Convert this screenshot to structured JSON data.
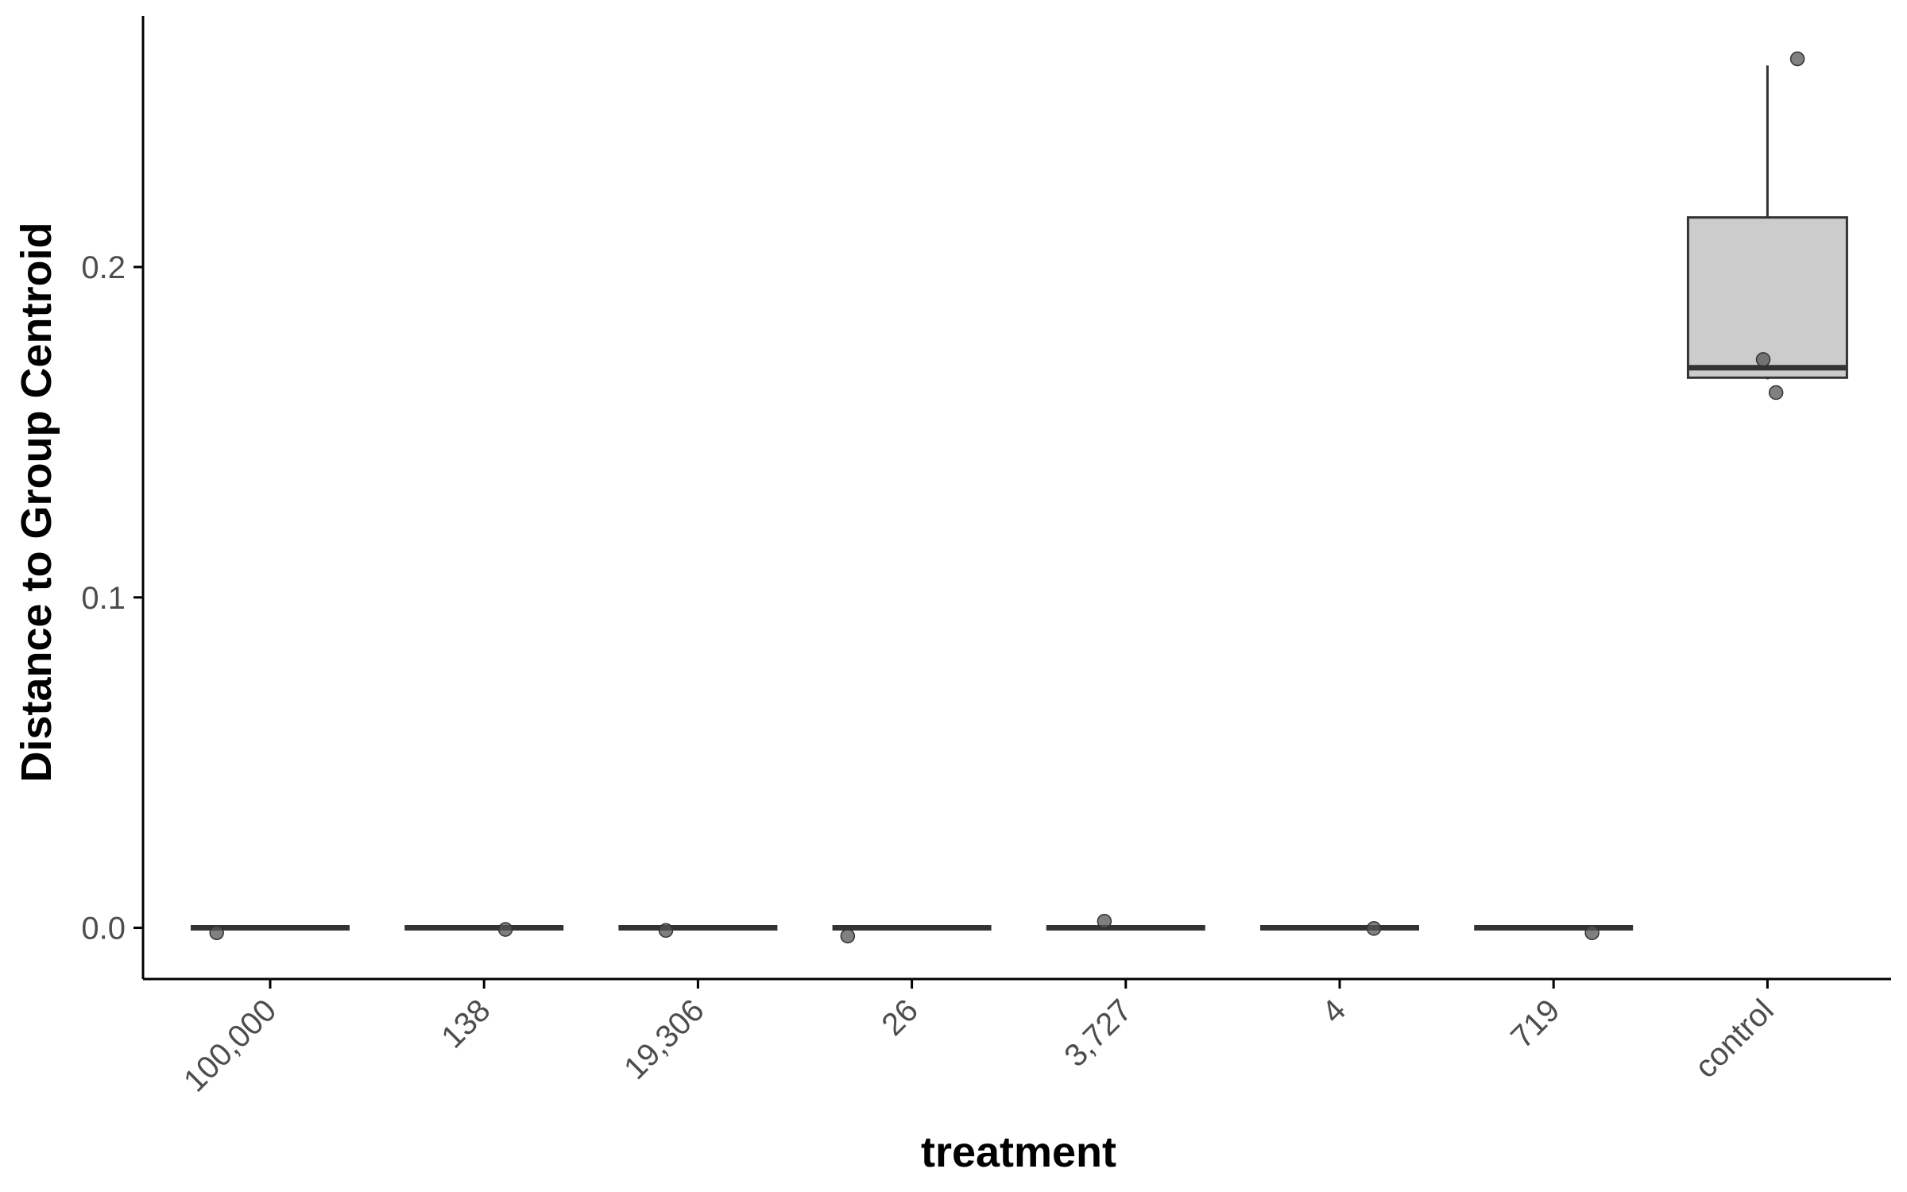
{
  "chart_data": {
    "type": "box",
    "xlabel": "treatment",
    "ylabel": "Distance to Group Centroid",
    "ylim": [
      -0.0155,
      0.276
    ],
    "yticks": [
      0.0,
      0.1,
      0.2
    ],
    "ytick_labels": [
      "0.0",
      "0.1",
      "0.2"
    ],
    "categories": [
      "100,000",
      "138",
      "19,306",
      "26",
      "3,727",
      "4",
      "719",
      "control"
    ],
    "boxes": [
      {
        "category": "100,000",
        "min": 0.0,
        "q1": 0.0,
        "median": 0.0,
        "q3": 0.0,
        "max": 0.0
      },
      {
        "category": "138",
        "min": 0.0,
        "q1": 0.0,
        "median": 0.0,
        "q3": 0.0,
        "max": 0.0
      },
      {
        "category": "19,306",
        "min": 0.0,
        "q1": 0.0,
        "median": 0.0,
        "q3": 0.0,
        "max": 0.0
      },
      {
        "category": "26",
        "min": 0.0,
        "q1": 0.0,
        "median": 0.0,
        "q3": 0.0,
        "max": 0.0
      },
      {
        "category": "3,727",
        "min": 0.0,
        "q1": 0.0,
        "median": 0.0,
        "q3": 0.0,
        "max": 0.0
      },
      {
        "category": "4",
        "min": 0.0,
        "q1": 0.0,
        "median": 0.0,
        "q3": 0.0,
        "max": 0.0
      },
      {
        "category": "719",
        "min": 0.0,
        "q1": 0.0,
        "median": 0.0,
        "q3": 0.0,
        "max": 0.0
      },
      {
        "category": "control",
        "min": 0.166,
        "q1": 0.1665,
        "median": 0.1695,
        "q3": 0.215,
        "max": 0.261
      }
    ],
    "points": [
      {
        "category": "100,000",
        "jitter": -0.25,
        "y": -0.0015
      },
      {
        "category": "138",
        "jitter": 0.1,
        "y": -0.0005
      },
      {
        "category": "19,306",
        "jitter": -0.15,
        "y": -0.0008
      },
      {
        "category": "26",
        "jitter": -0.3,
        "y": -0.0025
      },
      {
        "category": "3,727",
        "jitter": -0.1,
        "y": 0.002
      },
      {
        "category": "4",
        "jitter": 0.16,
        "y": -0.0002
      },
      {
        "category": "719",
        "jitter": 0.18,
        "y": -0.0015
      },
      {
        "category": "control",
        "jitter": 0.14,
        "y": 0.263
      },
      {
        "category": "control",
        "jitter": -0.02,
        "y": 0.172
      },
      {
        "category": "control",
        "jitter": 0.04,
        "y": 0.162
      }
    ],
    "colors": {
      "box_fill": "#cccccc",
      "box_line": "#333333",
      "point": "#555555",
      "axis": "#000000",
      "tick_text": "#4d4d4d"
    },
    "grid": false
  }
}
